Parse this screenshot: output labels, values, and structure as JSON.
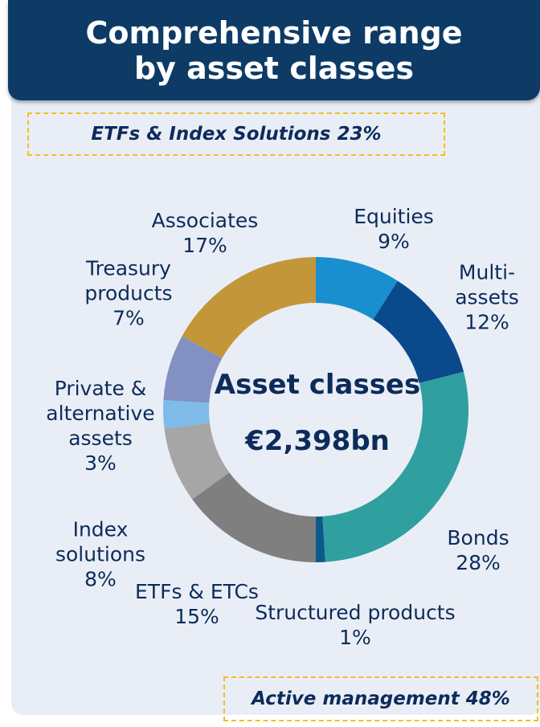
{
  "chart_data": {
    "type": "donut",
    "title": "Comprehensive range by asset classes",
    "annotations": [
      "ETFs & Index Solutions 23%",
      "Active management 48%"
    ],
    "center_title": "Asset classes",
    "center_value": "€2,398bn",
    "categories": [
      "Equities",
      "Multi-assets",
      "Bonds",
      "Structured products",
      "ETFs & ETCs",
      "Index solutions",
      "Private & alternative assets",
      "Treasury products",
      "Associates"
    ],
    "values": [
      9,
      12,
      28,
      1,
      15,
      8,
      3,
      7,
      17
    ],
    "value_labels": [
      "9%",
      "12%",
      "28%",
      "1%",
      "15%",
      "8%",
      "3%",
      "7%",
      "17%"
    ],
    "colors": [
      "#1a8fd0",
      "#0a4a8c",
      "#2f9fa0",
      "#0d5a8a",
      "#7f7f7f",
      "#a6a6a6",
      "#7fbbe8",
      "#8290c2",
      "#c4963a"
    ]
  }
}
